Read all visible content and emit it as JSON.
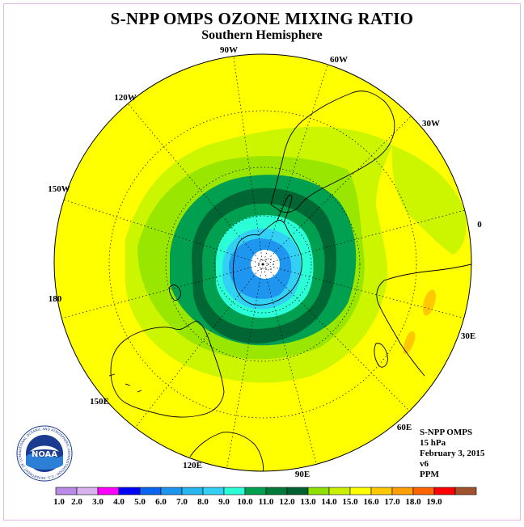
{
  "title": "S-NPP OMPS OZONE MIXING RATIO",
  "subtitle": "Southern Hemisphere",
  "meridian_labels": [
    "90W",
    "60W",
    "30W",
    "0",
    "30E",
    "60E",
    "90E",
    "120E",
    "150E",
    "180",
    "150W",
    "120W"
  ],
  "info": {
    "instrument": "S-NPP OMPS",
    "pressure": "15 hPa",
    "date": "February 3, 2015",
    "version": "v6",
    "units": "PPM"
  },
  "logo": {
    "text": "NOAA",
    "ring_text": "NATIONAL OCEANIC AND ATMOSPHERIC ADMINISTRATION · U.S. DEPARTMENT OF COMMERCE"
  },
  "colorbar": {
    "ticks": [
      "1.0",
      "2.0",
      "3.0",
      "4.0",
      "5.0",
      "6.0",
      "7.0",
      "8.0",
      "9.0",
      "10.0",
      "11.0",
      "12.0",
      "13.0",
      "14.0",
      "15.0",
      "16.0",
      "17.0",
      "18.0",
      "19.0"
    ],
    "colors": [
      "#b98ae6",
      "#d9b3f0",
      "#ff00ff",
      "#0000ff",
      "#0a64f0",
      "#1e96f0",
      "#26b7f0",
      "#33d0f5",
      "#2affd8",
      "#00a050",
      "#007a3a",
      "#006030",
      "#8ee000",
      "#c8f000",
      "#ffff00",
      "#ffc800",
      "#ffa000",
      "#ff6400",
      "#ff0000",
      "#a0522d"
    ]
  },
  "colors": {
    "bg_ozone": "#ffff00",
    "band_12": "#ccf500",
    "band_11": "#99e600",
    "band_10": "#00a050",
    "band_9": "#006633",
    "band_8": "#2affd8",
    "band_7": "#33d0f5",
    "band_6": "#1e96f0",
    "pole": "#ffffff",
    "orange_patch": "#ffc800"
  }
}
